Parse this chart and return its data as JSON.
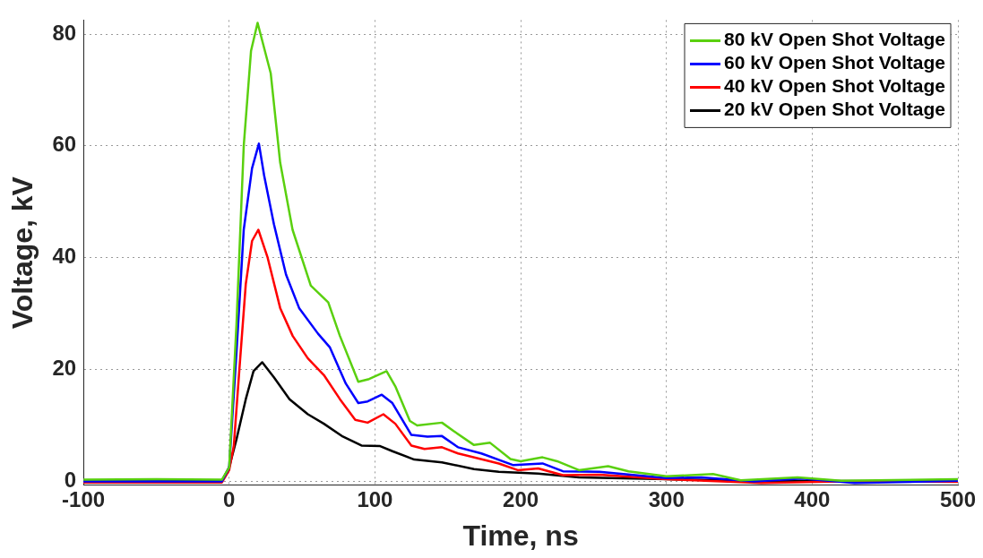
{
  "chart_data": {
    "type": "line",
    "xlabel": "Time, ns",
    "ylabel": "Voltage, kV",
    "xlim": [
      -100,
      500
    ],
    "xticks": [
      -100,
      0,
      100,
      200,
      300,
      400,
      500
    ],
    "ylim": [
      -0.7,
      82.5
    ],
    "yticks": [
      0,
      20,
      40,
      60,
      80
    ],
    "grid": true,
    "legend": "top right",
    "marker": "none",
    "line_style": "solid",
    "series": [
      {
        "name": "80 kV Open Shot Voltage",
        "color": "#5ad00f",
        "x": [
          -100,
          -50,
          -5,
          0,
          5,
          10,
          15,
          19.5,
          28.5,
          35,
          43.5,
          56,
          68,
          76,
          88.6,
          96,
          108,
          114,
          124,
          129,
          146,
          154,
          168,
          179,
          193,
          200,
          215,
          225,
          240,
          260,
          274,
          300,
          332,
          351,
          390,
          420,
          500
        ],
        "values": [
          0.3,
          0.4,
          0.3,
          2.5,
          28,
          60,
          77,
          82,
          73,
          57,
          45,
          35,
          32,
          26,
          17.8,
          18.3,
          19.7,
          17,
          10.8,
          10,
          10.5,
          9,
          6.5,
          6.9,
          4,
          3.6,
          4.3,
          3.6,
          2,
          2.7,
          1.8,
          0.9,
          1.3,
          0.2,
          0.7,
          0.1,
          0.4
        ]
      },
      {
        "name": "60 kV Open Shot Voltage",
        "color": "#0000ff",
        "x": [
          -100,
          -50,
          -5,
          0,
          5,
          10,
          15.7,
          20.4,
          24,
          30.7,
          39,
          48,
          61,
          69,
          80,
          88.6,
          95,
          104.7,
          112,
          125,
          136,
          146,
          157,
          173,
          195,
          215,
          229,
          254,
          300,
          324,
          360,
          393,
          429,
          500
        ],
        "values": [
          0,
          0,
          0,
          2.5,
          23,
          45,
          56,
          60.4,
          54.7,
          46,
          37,
          31,
          26.4,
          24,
          17.5,
          14,
          14.3,
          15.5,
          14,
          8.3,
          8,
          8.1,
          6.1,
          5,
          2.9,
          3.2,
          1.8,
          1.7,
          0.6,
          0.7,
          0,
          0.5,
          -0.3,
          0.1
        ]
      },
      {
        "name": "40 kV Open Shot Voltage",
        "color": "#ff0000",
        "x": [
          -100,
          -50,
          -5,
          0,
          3.2,
          7,
          11.4,
          15.7,
          20,
          26.4,
          35,
          43.6,
          54,
          65,
          76,
          86.5,
          95,
          105.8,
          114,
          125,
          134,
          146,
          157,
          185,
          198,
          212,
          229,
          254,
          300,
          365,
          420,
          500
        ],
        "values": [
          -0.2,
          -0.2,
          -0.2,
          2,
          6.4,
          20,
          35.3,
          43,
          45,
          40,
          31,
          26,
          22,
          19,
          14.7,
          11,
          10.5,
          12,
          10.3,
          6.4,
          5.8,
          6.1,
          5,
          3.2,
          2,
          2.3,
          1.1,
          1.2,
          0.4,
          -0.3,
          0,
          -0.1
        ]
      },
      {
        "name": "20 kV Open Shot Voltage",
        "color": "#000000",
        "x": [
          -100,
          -50,
          -5,
          0,
          5,
          11.4,
          16.7,
          22.7,
          30.7,
          41.4,
          54,
          65,
          78,
          90.8,
          103.6,
          112,
          127,
          146,
          168,
          185,
          212,
          240,
          300,
          351,
          500
        ],
        "values": [
          0,
          0,
          0.1,
          2.5,
          7.5,
          14.7,
          19.7,
          21.3,
          18.6,
          14.7,
          12,
          10.3,
          8,
          6.4,
          6.3,
          5.4,
          3.9,
          3.4,
          2.2,
          1.7,
          1.4,
          0.7,
          0.4,
          0.1,
          0
        ]
      }
    ]
  }
}
